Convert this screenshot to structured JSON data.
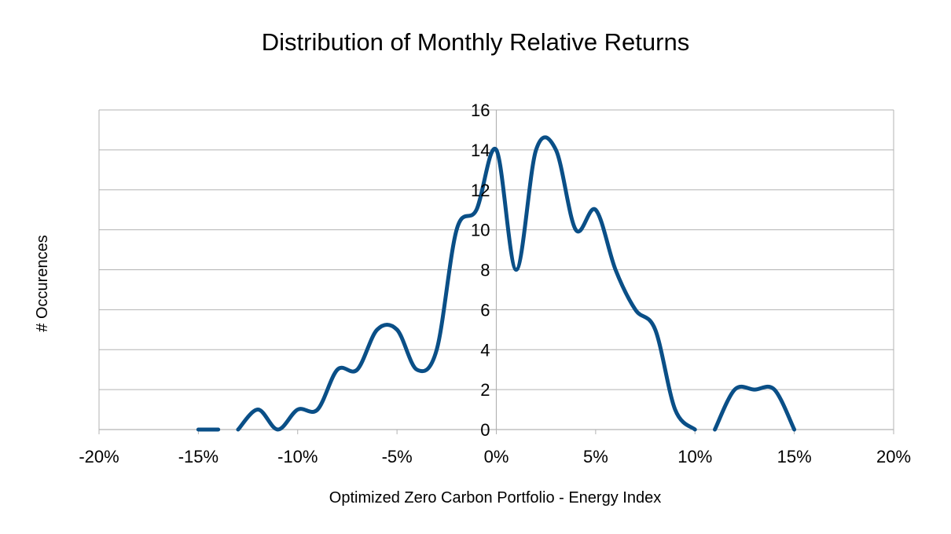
{
  "chart_data": {
    "type": "line",
    "title": "Distribution of Monthly Relative Returns",
    "xlabel": "Optimized Zero Carbon Portfolio - Energy Index",
    "ylabel": "# Occurences",
    "xlim": [
      -0.2,
      0.2
    ],
    "ylim": [
      0,
      16
    ],
    "x_ticks": [
      -0.2,
      -0.15,
      -0.1,
      -0.05,
      0,
      0.05,
      0.1,
      0.15,
      0.2
    ],
    "x_tick_labels": [
      "-20%",
      "-15%",
      "-10%",
      "-5%",
      "0%",
      "5%",
      "10%",
      "15%",
      "20%"
    ],
    "y_ticks": [
      0,
      2,
      4,
      6,
      8,
      10,
      12,
      14,
      16
    ],
    "y_tick_labels": [
      "0",
      "2",
      "4",
      "6",
      "8",
      "10",
      "12",
      "14",
      "16"
    ],
    "grid": true,
    "color": "#0a4f87",
    "series": [
      {
        "segments": [
          [
            [
              -0.15,
              0
            ],
            [
              -0.14,
              0
            ]
          ],
          [
            [
              -0.13,
              0
            ],
            [
              -0.12,
              1
            ],
            [
              -0.11,
              0
            ],
            [
              -0.1,
              1
            ],
            [
              -0.09,
              1
            ],
            [
              -0.08,
              3
            ],
            [
              -0.07,
              3
            ],
            [
              -0.06,
              5
            ],
            [
              -0.05,
              5
            ],
            [
              -0.04,
              3
            ],
            [
              -0.03,
              4
            ],
            [
              -0.02,
              10
            ],
            [
              -0.01,
              11
            ],
            [
              0.0,
              14
            ],
            [
              0.01,
              8
            ],
            [
              0.02,
              14
            ],
            [
              0.03,
              14
            ],
            [
              0.04,
              10
            ],
            [
              0.05,
              11
            ],
            [
              0.06,
              8
            ],
            [
              0.07,
              6
            ],
            [
              0.08,
              5
            ],
            [
              0.09,
              1
            ],
            [
              0.1,
              0
            ]
          ],
          [
            [
              0.11,
              0
            ],
            [
              0.12,
              2
            ],
            [
              0.13,
              2
            ],
            [
              0.14,
              2
            ],
            [
              0.15,
              0
            ]
          ]
        ]
      }
    ]
  }
}
